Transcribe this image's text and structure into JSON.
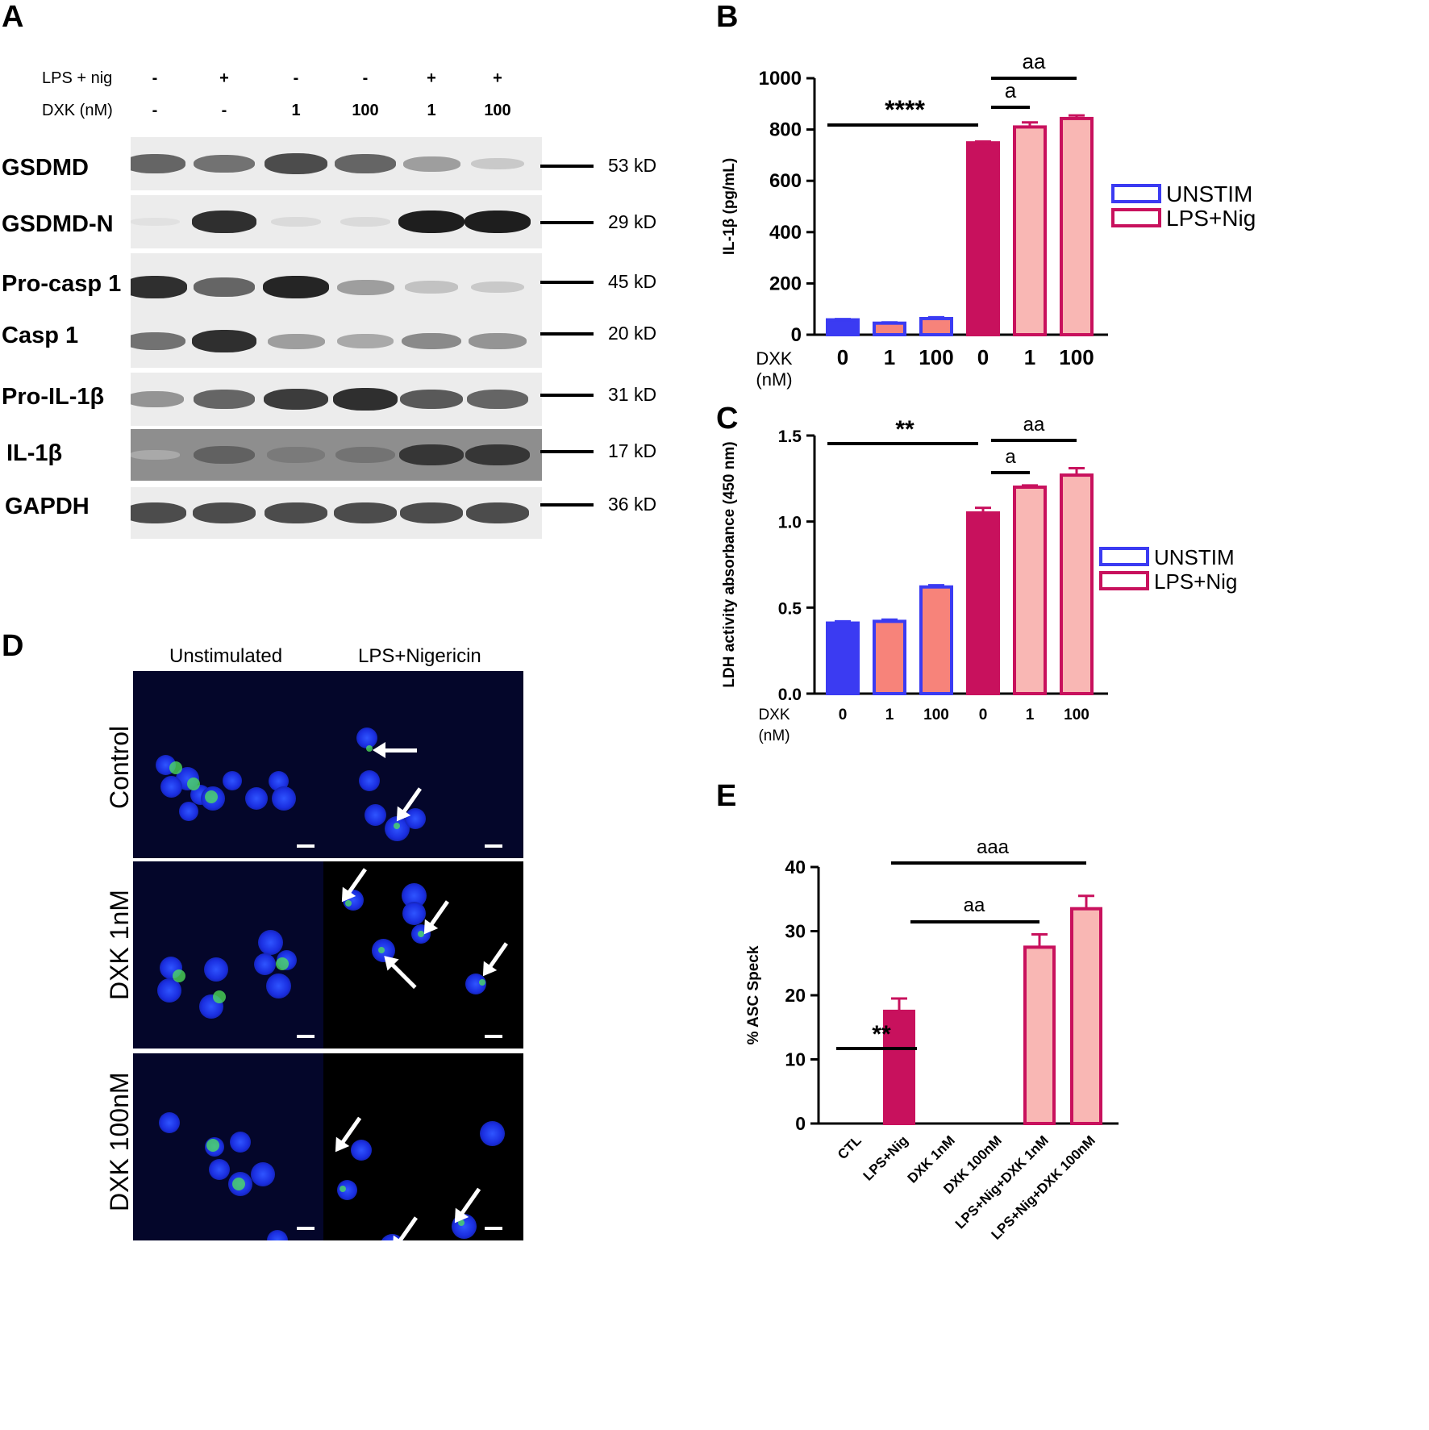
{
  "panels": {
    "a": "A",
    "b": "B",
    "c": "C",
    "d": "D",
    "e": "E"
  },
  "western": {
    "cond_labels": [
      "LPS + nig",
      "DXK (nM)"
    ],
    "lps": [
      "-",
      "+",
      "-",
      "-",
      "+",
      "+"
    ],
    "dxk": [
      "-",
      "-",
      "1",
      "100",
      "1",
      "100"
    ],
    "proteins": [
      {
        "name": "GSDMD",
        "kd": "53 kD",
        "bands": [
          0.75,
          0.7,
          0.85,
          0.75,
          0.5,
          0.25
        ]
      },
      {
        "name": "GSDMD-N",
        "kd": "29 kD",
        "bands": [
          0.05,
          0.95,
          0.12,
          0.12,
          1.0,
          1.0
        ]
      },
      {
        "name": "Pro-casp 1",
        "kd": "45 kD",
        "bands": [
          0.95,
          0.75,
          0.98,
          0.5,
          0.3,
          0.25
        ]
      },
      {
        "name": "Casp 1",
        "kd": "20 kD",
        "bands": [
          0.7,
          0.95,
          0.5,
          0.45,
          0.6,
          0.55
        ]
      },
      {
        "name": "Pro-IL-1β",
        "kd": "31 kD",
        "bands": [
          0.55,
          0.75,
          0.9,
          0.95,
          0.8,
          0.75
        ]
      },
      {
        "name": "IL-1β",
        "kd": "17 kD",
        "bands": [
          0.1,
          0.7,
          0.55,
          0.6,
          0.9,
          0.9
        ]
      },
      {
        "name": "GAPDH",
        "kd": "36 kD",
        "bands": [
          0.85,
          0.85,
          0.85,
          0.85,
          0.85,
          0.85
        ]
      }
    ]
  },
  "micrographs": {
    "col_titles": [
      "Unstimulated",
      "LPS+Nigericin"
    ],
    "row_titles": [
      "Control",
      "DXK 1nM",
      "DXK 100nM"
    ]
  },
  "colors": {
    "unstim": "#3b3bf2",
    "unstim_light": "#f7837a",
    "lps": "#c8115d",
    "lps_light": "#f9b7b4"
  },
  "chart_data": [
    {
      "panel": "B",
      "type": "bar",
      "ylabel": "IL-1β (pg/mL)",
      "x_prefix": "DXK",
      "x_unit": "(nM)",
      "categories": [
        "0",
        "1",
        "100",
        "0",
        "1",
        "100"
      ],
      "ylim": [
        0,
        1000
      ],
      "yticks": [
        0,
        200,
        400,
        600,
        800,
        1000
      ],
      "series": [
        {
          "name": "UNSTIM",
          "values": [
            58,
            45,
            63,
            null,
            null,
            null
          ],
          "errors": [
            3,
            3,
            5,
            0,
            0,
            0
          ]
        },
        {
          "name": "LPS+Nig",
          "values": [
            null,
            null,
            null,
            748,
            810,
            843
          ],
          "errors": [
            0,
            0,
            0,
            5,
            18,
            12
          ]
        }
      ],
      "legend": [
        "UNSTIM",
        "LPS+Nig"
      ],
      "annotations": [
        "****",
        "aa",
        "a"
      ]
    },
    {
      "panel": "C",
      "type": "bar",
      "ylabel": "LDH activity absorbance (450 nm)",
      "x_prefix": "DXK",
      "x_unit": "(nM)",
      "categories": [
        "0",
        "1",
        "100",
        "0",
        "1",
        "100"
      ],
      "ylim": [
        0,
        1.5
      ],
      "yticks": [
        "0.0",
        "0.5",
        "1.0",
        "1.5"
      ],
      "series": [
        {
          "name": "UNSTIM",
          "values": [
            0.41,
            0.42,
            0.62,
            null,
            null,
            null
          ],
          "errors": [
            0.01,
            0.01,
            0.01,
            0,
            0,
            0
          ]
        },
        {
          "name": "LPS+Nig",
          "values": [
            null,
            null,
            null,
            1.05,
            1.2,
            1.27
          ],
          "errors": [
            0,
            0,
            0,
            0.03,
            0.01,
            0.04
          ]
        }
      ],
      "legend": [
        "UNSTIM",
        "LPS+Nig"
      ],
      "annotations": [
        "**",
        "aa",
        "a"
      ]
    },
    {
      "panel": "E",
      "type": "bar",
      "ylabel": "% ASC Speck",
      "categories": [
        "CTL",
        "LPS+Nig",
        "DXK 1nM",
        "DXK 100nM",
        "LPS+Nig+DXK 1nM",
        "LPS+Nig+DXK 100nM"
      ],
      "ylim": [
        0,
        40
      ],
      "yticks": [
        0,
        10,
        20,
        30,
        40
      ],
      "values": [
        0,
        17.5,
        0,
        0,
        27.5,
        33.5
      ],
      "errors": [
        0,
        2,
        0,
        0,
        2,
        2
      ],
      "annotations": [
        "**",
        "aa",
        "aaa"
      ]
    }
  ]
}
